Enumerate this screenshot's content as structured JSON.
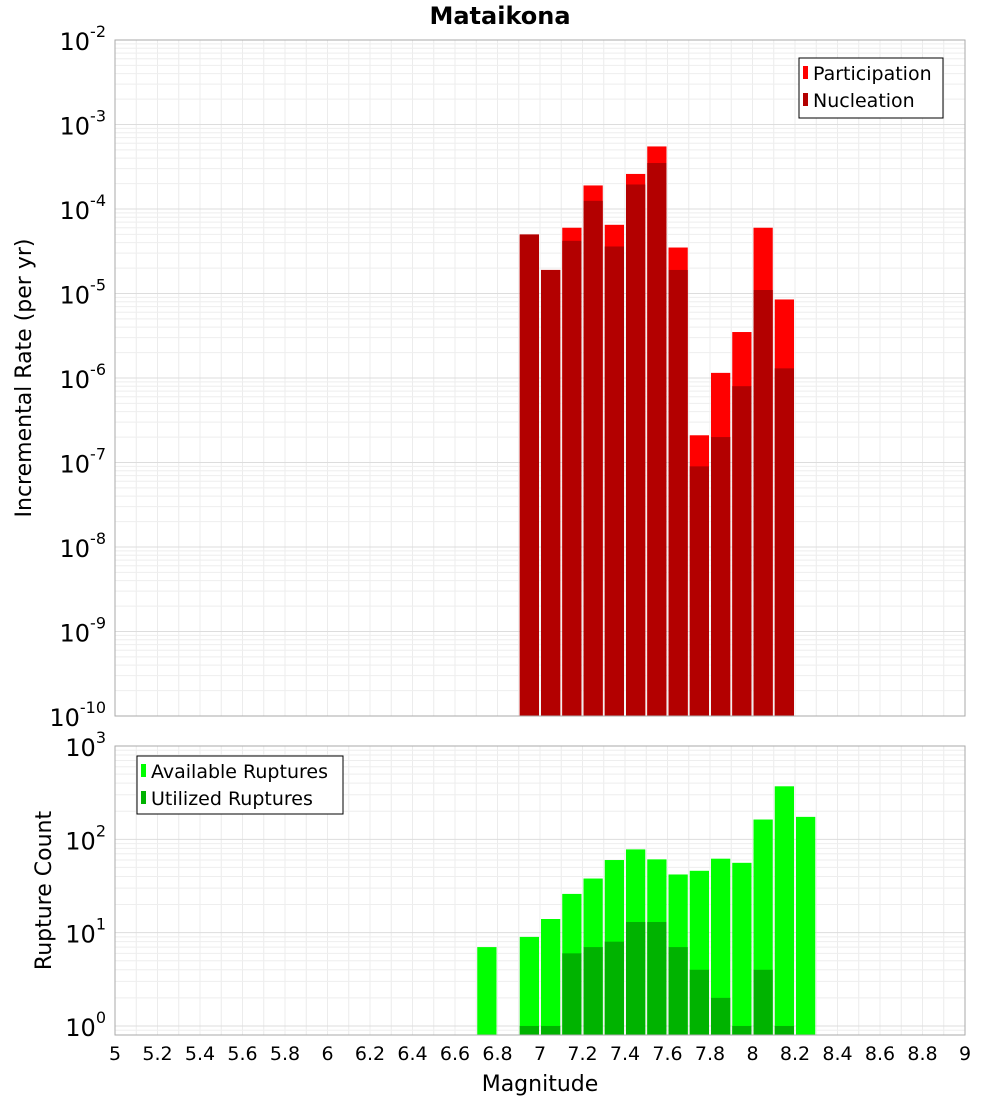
{
  "chart_data": [
    {
      "type": "bar",
      "title": "Mataikona",
      "xlabel": "",
      "ylabel": "Incremental Rate (per yr)",
      "yscale": "log",
      "xlim": [
        5,
        9
      ],
      "ylim": [
        1e-10,
        0.01
      ],
      "y_tick_labels": [
        "10^-10",
        "10^-9",
        "10^-8",
        "10^-7",
        "10^-6",
        "10^-5",
        "10^-4",
        "10^-3",
        "10^-2"
      ],
      "grid": true,
      "legend_position": "top-right",
      "bar_width": 0.1,
      "x": [
        6.95,
        7.05,
        7.15,
        7.25,
        7.35,
        7.45,
        7.55,
        7.65,
        7.75,
        7.85,
        7.95,
        8.05,
        8.15
      ],
      "series": [
        {
          "name": "Participation",
          "color": "#ff0000",
          "values": [
            5e-05,
            1.9e-05,
            6e-05,
            0.00019,
            6.5e-05,
            0.00026,
            0.00055,
            3.5e-05,
            2.1e-07,
            1.15e-06,
            3.5e-06,
            6e-05,
            8.5e-06
          ]
        },
        {
          "name": "Nucleation",
          "color": "#b30000",
          "values": [
            5e-05,
            1.9e-05,
            4.2e-05,
            0.000125,
            3.6e-05,
            0.000195,
            0.00035,
            1.9e-05,
            9e-08,
            2e-07,
            8e-07,
            1.1e-05,
            1.3e-06
          ]
        }
      ]
    },
    {
      "type": "bar",
      "title": "",
      "xlabel": "Magnitude",
      "ylabel": "Rupture Count",
      "yscale": "log",
      "xlim": [
        5,
        9
      ],
      "ylim": [
        0.8,
        1000
      ],
      "x_tick_labels": [
        "5",
        "5.2",
        "5.4",
        "5.6",
        "5.8",
        "6",
        "6.2",
        "6.4",
        "6.6",
        "6.8",
        "7",
        "7.2",
        "7.4",
        "7.6",
        "7.8",
        "8",
        "8.2",
        "8.4",
        "8.6",
        "8.8",
        "9"
      ],
      "y_tick_labels": [
        "10^0",
        "10^1",
        "10^2",
        "10^3"
      ],
      "grid": true,
      "legend_position": "top-left",
      "bar_width": 0.1,
      "x": [
        6.75,
        6.95,
        7.05,
        7.15,
        7.25,
        7.35,
        7.45,
        7.55,
        7.65,
        7.75,
        7.85,
        7.95,
        8.05,
        8.15,
        8.25
      ],
      "series": [
        {
          "name": "Available Ruptures",
          "color": "#00ff00",
          "values": [
            7,
            9,
            14,
            26,
            38,
            60,
            78,
            61,
            42,
            46,
            62,
            56,
            163,
            370,
            174
          ]
        },
        {
          "name": "Utilized Ruptures",
          "color": "#00b300",
          "values": [
            0,
            1,
            1,
            6,
            7,
            8,
            13,
            13,
            7,
            4,
            2,
            1,
            4,
            1,
            0
          ]
        }
      ]
    }
  ]
}
